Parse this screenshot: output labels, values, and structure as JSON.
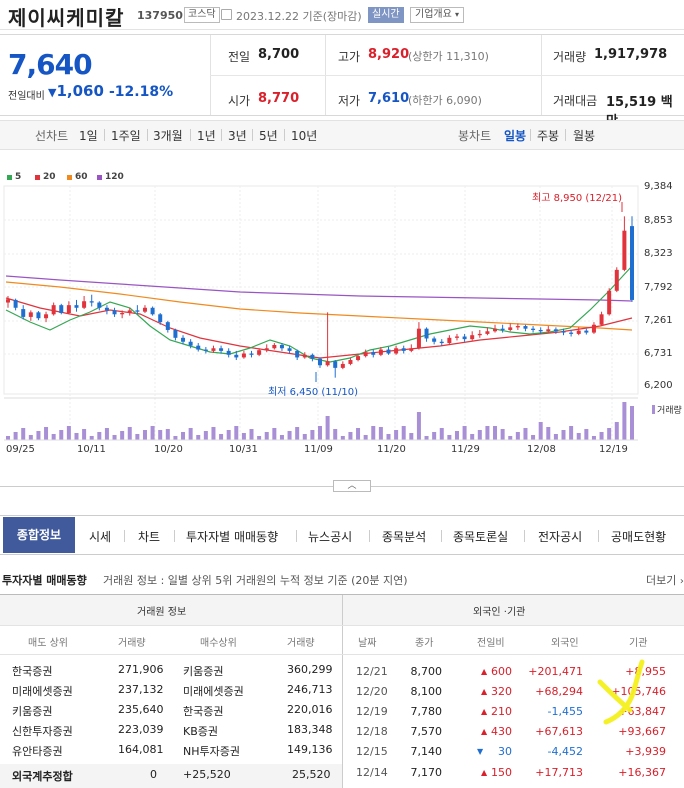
{
  "header": {
    "name": "제이씨케미칼",
    "code": "137950",
    "market": "코스닥",
    "date": "2023.12.22",
    "basis": "기준(장마감)",
    "realtime": "실시간",
    "company_info": "기업개요"
  },
  "price": {
    "current": "7,640",
    "change_label": "전일대비",
    "change_value": "1,060",
    "change_pct": "-12.18%",
    "direction": "down"
  },
  "stats": {
    "prev_label": "전일",
    "prev": "8,700",
    "high_label": "고가",
    "high": "8,920",
    "upper_limit": "(상한가 11,310)",
    "vol_label": "거래량",
    "volume": "1,917,978",
    "open_label": "시가",
    "open": "8,770",
    "low_label": "저가",
    "low": "7,610",
    "lower_limit": "(하한가 6,090)",
    "amt_label": "거래대금",
    "amount": "15,519",
    "amount_unit": "백만"
  },
  "chart_tabs": {
    "line": "선차트",
    "d1": "1일",
    "w1": "1주일",
    "m3": "3개월",
    "y1": "1년",
    "y3": "3년",
    "y5": "5년",
    "y10": "10년",
    "candle": "봉차트",
    "daily": "일봉",
    "weekly": "주봉",
    "monthly": "월봉"
  },
  "chart_data": {
    "type": "candlestick",
    "ma_legend": [
      {
        "name": "5",
        "color": "#34a853"
      },
      {
        "name": "20",
        "color": "#e0333c"
      },
      {
        "name": "60",
        "color": "#f08a1e"
      },
      {
        "name": "120",
        "color": "#9a55c4"
      }
    ],
    "y_ticks": [
      "9,384",
      "8,853",
      "8,323",
      "7,792",
      "7,261",
      "6,731",
      "6,200"
    ],
    "ylim": [
      6200,
      9384
    ],
    "x_ticks": [
      "09/25",
      "10/11",
      "10/20",
      "10/31",
      "11/09",
      "11/20",
      "11/29",
      "12/08",
      "12/19"
    ],
    "max_anno": "최고 8,950 (12/21)",
    "min_anno": "최저 6,450 (11/10)",
    "volume_label": "거래량",
    "up_color": "#e0333c",
    "down_color": "#1f6fd1",
    "volume_color": "#a88fd6"
  },
  "scroll_up": "︿",
  "nav": {
    "active": "종합정보",
    "items": [
      "시세",
      "차트",
      "투자자별 매매동향",
      "뉴스공시",
      "종목분석",
      "종목토론실",
      "전자공시",
      "공매도현황"
    ]
  },
  "section": {
    "title": "투자자별 매매동향",
    "desc": "거래원 정보 : 일별 상위 5위 거래원의 누적 정보 기준 (20분 지연)",
    "more": "더보기"
  },
  "broker": {
    "title": "거래원 정보",
    "cols": [
      "매도 상위",
      "거래량",
      "매수상위",
      "거래량"
    ],
    "rows": [
      [
        "한국증권",
        "271,906",
        "키움증권",
        "360,299"
      ],
      [
        "미래에셋증권",
        "237,132",
        "미래에셋증권",
        "246,713"
      ],
      [
        "키움증권",
        "235,640",
        "한국증권",
        "220,016"
      ],
      [
        "신한투자증권",
        "223,039",
        "KB증권",
        "183,348"
      ],
      [
        "유안타증권",
        "164,081",
        "NH투자증권",
        "149,136"
      ]
    ],
    "total": [
      "외국계추정합",
      "0",
      "+25,520",
      "25,520"
    ]
  },
  "foreign": {
    "title": "외국인 ·기관",
    "cols": [
      "날짜",
      "종가",
      "전일비",
      "외국인",
      "기관"
    ],
    "rows": [
      [
        "12/21",
        "8,700",
        "▲",
        "600",
        "+201,471",
        "+8,955"
      ],
      [
        "12/20",
        "8,100",
        "▲",
        "320",
        "+68,294",
        "+105,746"
      ],
      [
        "12/19",
        "7,780",
        "▲",
        "210",
        "-1,455",
        "+63,847"
      ],
      [
        "12/18",
        "7,570",
        "▲",
        "430",
        "+67,613",
        "+93,667"
      ],
      [
        "12/15",
        "7,140",
        "▼",
        "30",
        "-4,452",
        "+3,939"
      ],
      [
        "12/14",
        "7,170",
        "▲",
        "150",
        "+17,713",
        "+16,367"
      ]
    ]
  }
}
